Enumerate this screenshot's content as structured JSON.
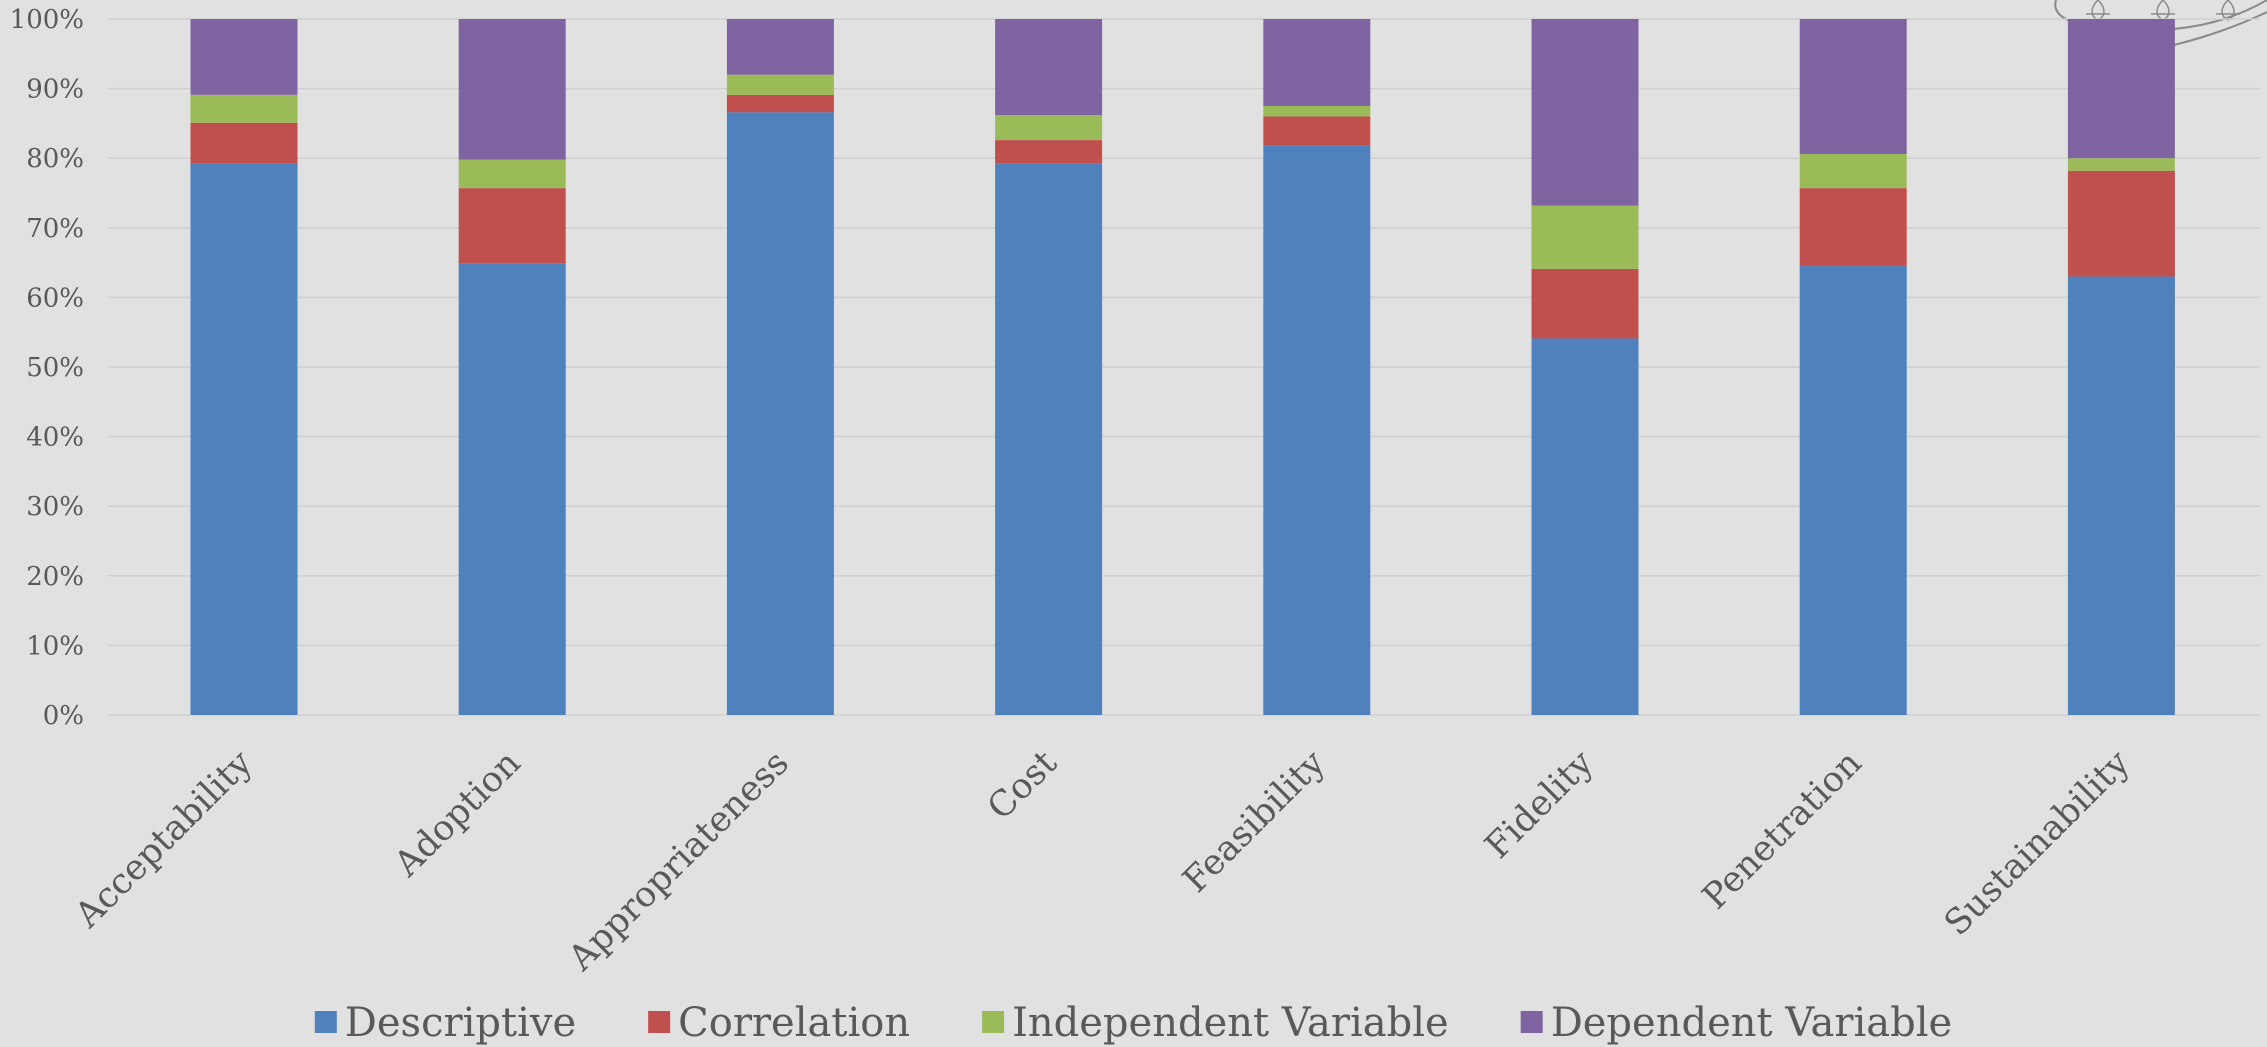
{
  "chart_data": {
    "type": "bar",
    "stacked": true,
    "percent": true,
    "categories": [
      "Acceptability",
      "Adoption",
      "Appropriateness",
      "Cost",
      "Feasibility",
      "Fidelity",
      "Penetration",
      "Sustainability"
    ],
    "series": [
      {
        "name": "Descriptive",
        "color": "#4f81bd",
        "values": [
          79.2,
          64.9,
          86.6,
          79.2,
          81.8,
          54.1,
          64.5,
          63.0
        ]
      },
      {
        "name": "Correlation",
        "color": "#c0504d",
        "values": [
          5.9,
          10.8,
          2.5,
          3.4,
          4.2,
          10.0,
          11.2,
          15.2
        ]
      },
      {
        "name": "Independent Variable",
        "color": "#9bbb59",
        "values": [
          4.0,
          4.1,
          2.9,
          3.6,
          1.5,
          9.1,
          4.9,
          1.8
        ]
      },
      {
        "name": "Dependent Variable",
        "color": "#8064a2",
        "values": [
          10.9,
          20.2,
          8.0,
          13.8,
          12.5,
          26.8,
          19.4,
          20.0
        ]
      }
    ],
    "y_ticks": [
      "0%",
      "10%",
      "20%",
      "30%",
      "40%",
      "50%",
      "60%",
      "70%",
      "80%",
      "90%",
      "100%"
    ],
    "ylim": [
      0,
      100
    ],
    "grid": true,
    "legend_position": "bottom",
    "title": "",
    "xlabel": "",
    "ylabel": ""
  }
}
